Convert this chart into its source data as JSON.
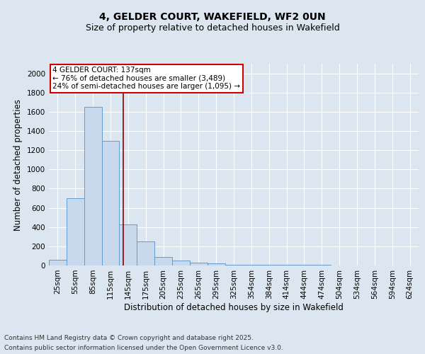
{
  "title_line1": "4, GELDER COURT, WAKEFIELD, WF2 0UN",
  "title_line2": "Size of property relative to detached houses in Wakefield",
  "xlabel": "Distribution of detached houses by size in Wakefield",
  "ylabel": "Number of detached properties",
  "categories": [
    "25sqm",
    "55sqm",
    "85sqm",
    "115sqm",
    "145sqm",
    "175sqm",
    "205sqm",
    "235sqm",
    "265sqm",
    "295sqm",
    "325sqm",
    "354sqm",
    "384sqm",
    "414sqm",
    "444sqm",
    "474sqm",
    "504sqm",
    "534sqm",
    "564sqm",
    "594sqm",
    "624sqm"
  ],
  "values": [
    60,
    700,
    1650,
    1300,
    430,
    250,
    90,
    50,
    30,
    25,
    5,
    5,
    5,
    5,
    10,
    5,
    0,
    0,
    0,
    0,
    0
  ],
  "bar_color": "#c9d9ed",
  "bar_edge_color": "#6699cc",
  "bar_width": 1.0,
  "ylim": [
    0,
    2100
  ],
  "yticks": [
    0,
    200,
    400,
    600,
    800,
    1000,
    1200,
    1400,
    1600,
    1800,
    2000
  ],
  "red_line_x": 3.73,
  "annotation_text": "4 GELDER COURT: 137sqm\n← 76% of detached houses are smaller (3,489)\n24% of semi-detached houses are larger (1,095) →",
  "annotation_box_color": "#ffffff",
  "annotation_box_edge": "#cc0000",
  "footer_line1": "Contains HM Land Registry data © Crown copyright and database right 2025.",
  "footer_line2": "Contains public sector information licensed under the Open Government Licence v3.0.",
  "background_color": "#dce6f0",
  "plot_bg_color": "#dce6f0",
  "grid_color": "#ffffff",
  "title_fontsize": 10,
  "subtitle_fontsize": 9,
  "axis_label_fontsize": 8.5,
  "tick_fontsize": 7.5,
  "annotation_fontsize": 7.5,
  "footer_fontsize": 6.5
}
